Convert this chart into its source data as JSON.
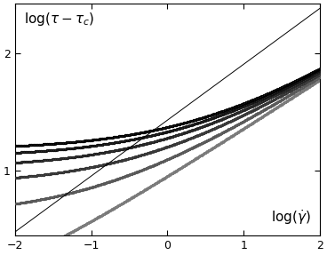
{
  "xlim": [
    -2,
    2
  ],
  "ylim": [
    0.45,
    2.42
  ],
  "yticks": [
    1.0,
    2.0
  ],
  "xticks": [
    -2,
    -1,
    0,
    1,
    2
  ],
  "gammas_min": -2.0,
  "gammas_max": 2.0,
  "n_points": 500,
  "tau0": 15.0,
  "K": 8.5,
  "n_exp": 0.42,
  "tau_c_values": [
    0.0,
    2.0,
    4.5,
    7.5,
    11.0,
    14.5
  ],
  "ref_line": [
    [
      -2,
      2
    ],
    [
      0.48,
      2.38
    ]
  ],
  "curve_styles": [
    {
      "marker": "o",
      "ms": 1.8,
      "mfc": "none",
      "color": "#000000",
      "mew": 0.5
    },
    {
      "marker": "o",
      "ms": 1.8,
      "mfc": "none",
      "color": "#111111",
      "mew": 0.5
    },
    {
      "marker": "o",
      "ms": 1.8,
      "mfc": "none",
      "color": "#222222",
      "mew": 0.5
    },
    {
      "marker": "o",
      "ms": 1.8,
      "mfc": "none",
      "color": "#333333",
      "mew": 0.5
    },
    {
      "marker": "o",
      "ms": 1.8,
      "mfc": "none",
      "color": "#555555",
      "mew": 0.5
    },
    {
      "marker": "o",
      "ms": 1.8,
      "mfc": "none",
      "color": "#777777",
      "mew": 0.5
    }
  ]
}
